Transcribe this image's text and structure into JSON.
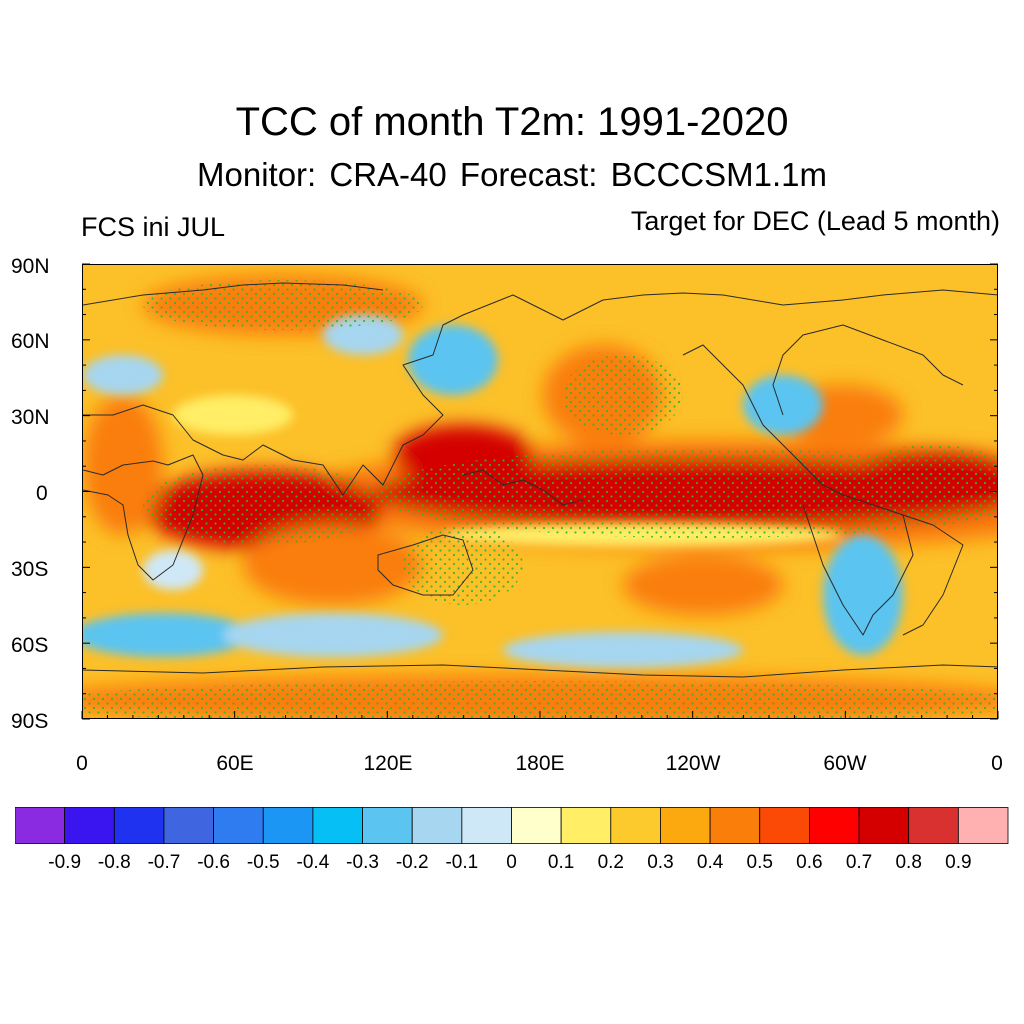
{
  "title": "TCC of month T2m: 1991-2020",
  "subtitle": "Monitor: CRA-40   Forecast: BCCCSM1.1m",
  "left_label": "FCS ini JUL",
  "right_label": "Target for DEC (Lead 5 month)",
  "y_axis": {
    "ticks": [
      "90N",
      "60N",
      "30N",
      "0",
      "30S",
      "60S",
      "90S"
    ],
    "values": [
      90,
      60,
      30,
      0,
      -30,
      -60,
      -90
    ]
  },
  "x_axis": {
    "ticks": [
      "0",
      "60E",
      "120E",
      "180E",
      "120W",
      "60W",
      "0"
    ],
    "values": [
      0,
      60,
      120,
      180,
      240,
      300,
      360
    ]
  },
  "colorbar": {
    "colors": [
      "#8a2be2",
      "#3a15f0",
      "#1e32f0",
      "#3f66e0",
      "#2e7cf0",
      "#1c96f5",
      "#05bff5",
      "#5cc4f0",
      "#a6d6f0",
      "#cfe8f7",
      "#ffffcc",
      "#ffee66",
      "#fdca2e",
      "#fca90f",
      "#fa7e0a",
      "#fa4a05",
      "#ff0000",
      "#d40000",
      "#d93030",
      "#ffb0b0"
    ],
    "labels": [
      "-0.9",
      "-0.8",
      "-0.7",
      "-0.6",
      "-0.5",
      "-0.4",
      "-0.3",
      "-0.2",
      "-0.1",
      "0",
      "0.1",
      "0.2",
      "0.3",
      "0.4",
      "0.5",
      "0.6",
      "0.7",
      "0.8",
      "0.9"
    ]
  },
  "map": {
    "background_color": "#fcc028",
    "stipple_color": "#2db52d",
    "coastline_color": "#2a2a2a"
  }
}
